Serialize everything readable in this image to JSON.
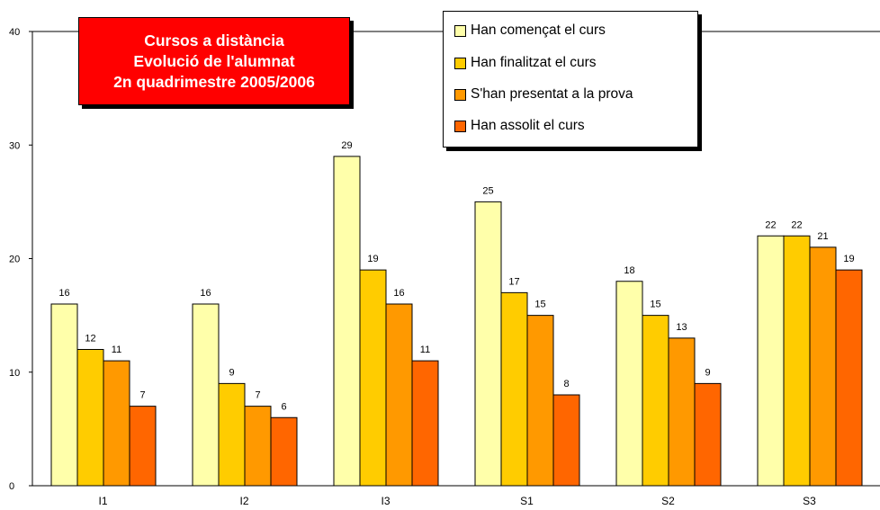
{
  "chart_data": {
    "type": "bar",
    "title_lines": [
      "Cursos a distància",
      "Evolució de l'alumnat",
      "2n quadrimestre 2005/2006"
    ],
    "categories": [
      "I1",
      "I2",
      "I3",
      "S1",
      "S2",
      "S3"
    ],
    "series": [
      {
        "name": "Han començat el curs",
        "color": "#ffffaa",
        "values": [
          16,
          16,
          29,
          25,
          18,
          22
        ]
      },
      {
        "name": "Han finalitzat el curs",
        "color": "#ffcc00",
        "values": [
          12,
          9,
          19,
          17,
          15,
          22
        ]
      },
      {
        "name": "S'han presentat a la prova",
        "color": "#ff9900",
        "values": [
          11,
          7,
          16,
          15,
          13,
          21
        ]
      },
      {
        "name": "Han assolit el curs",
        "color": "#ff6600",
        "values": [
          7,
          6,
          11,
          8,
          9,
          19
        ]
      }
    ],
    "yticks": [
      0,
      10,
      20,
      30,
      40
    ],
    "ylim": [
      0,
      40
    ],
    "xlabel": "",
    "ylabel": "",
    "legend_position": "top-right",
    "grid": false,
    "title_background": "#ff0000"
  }
}
